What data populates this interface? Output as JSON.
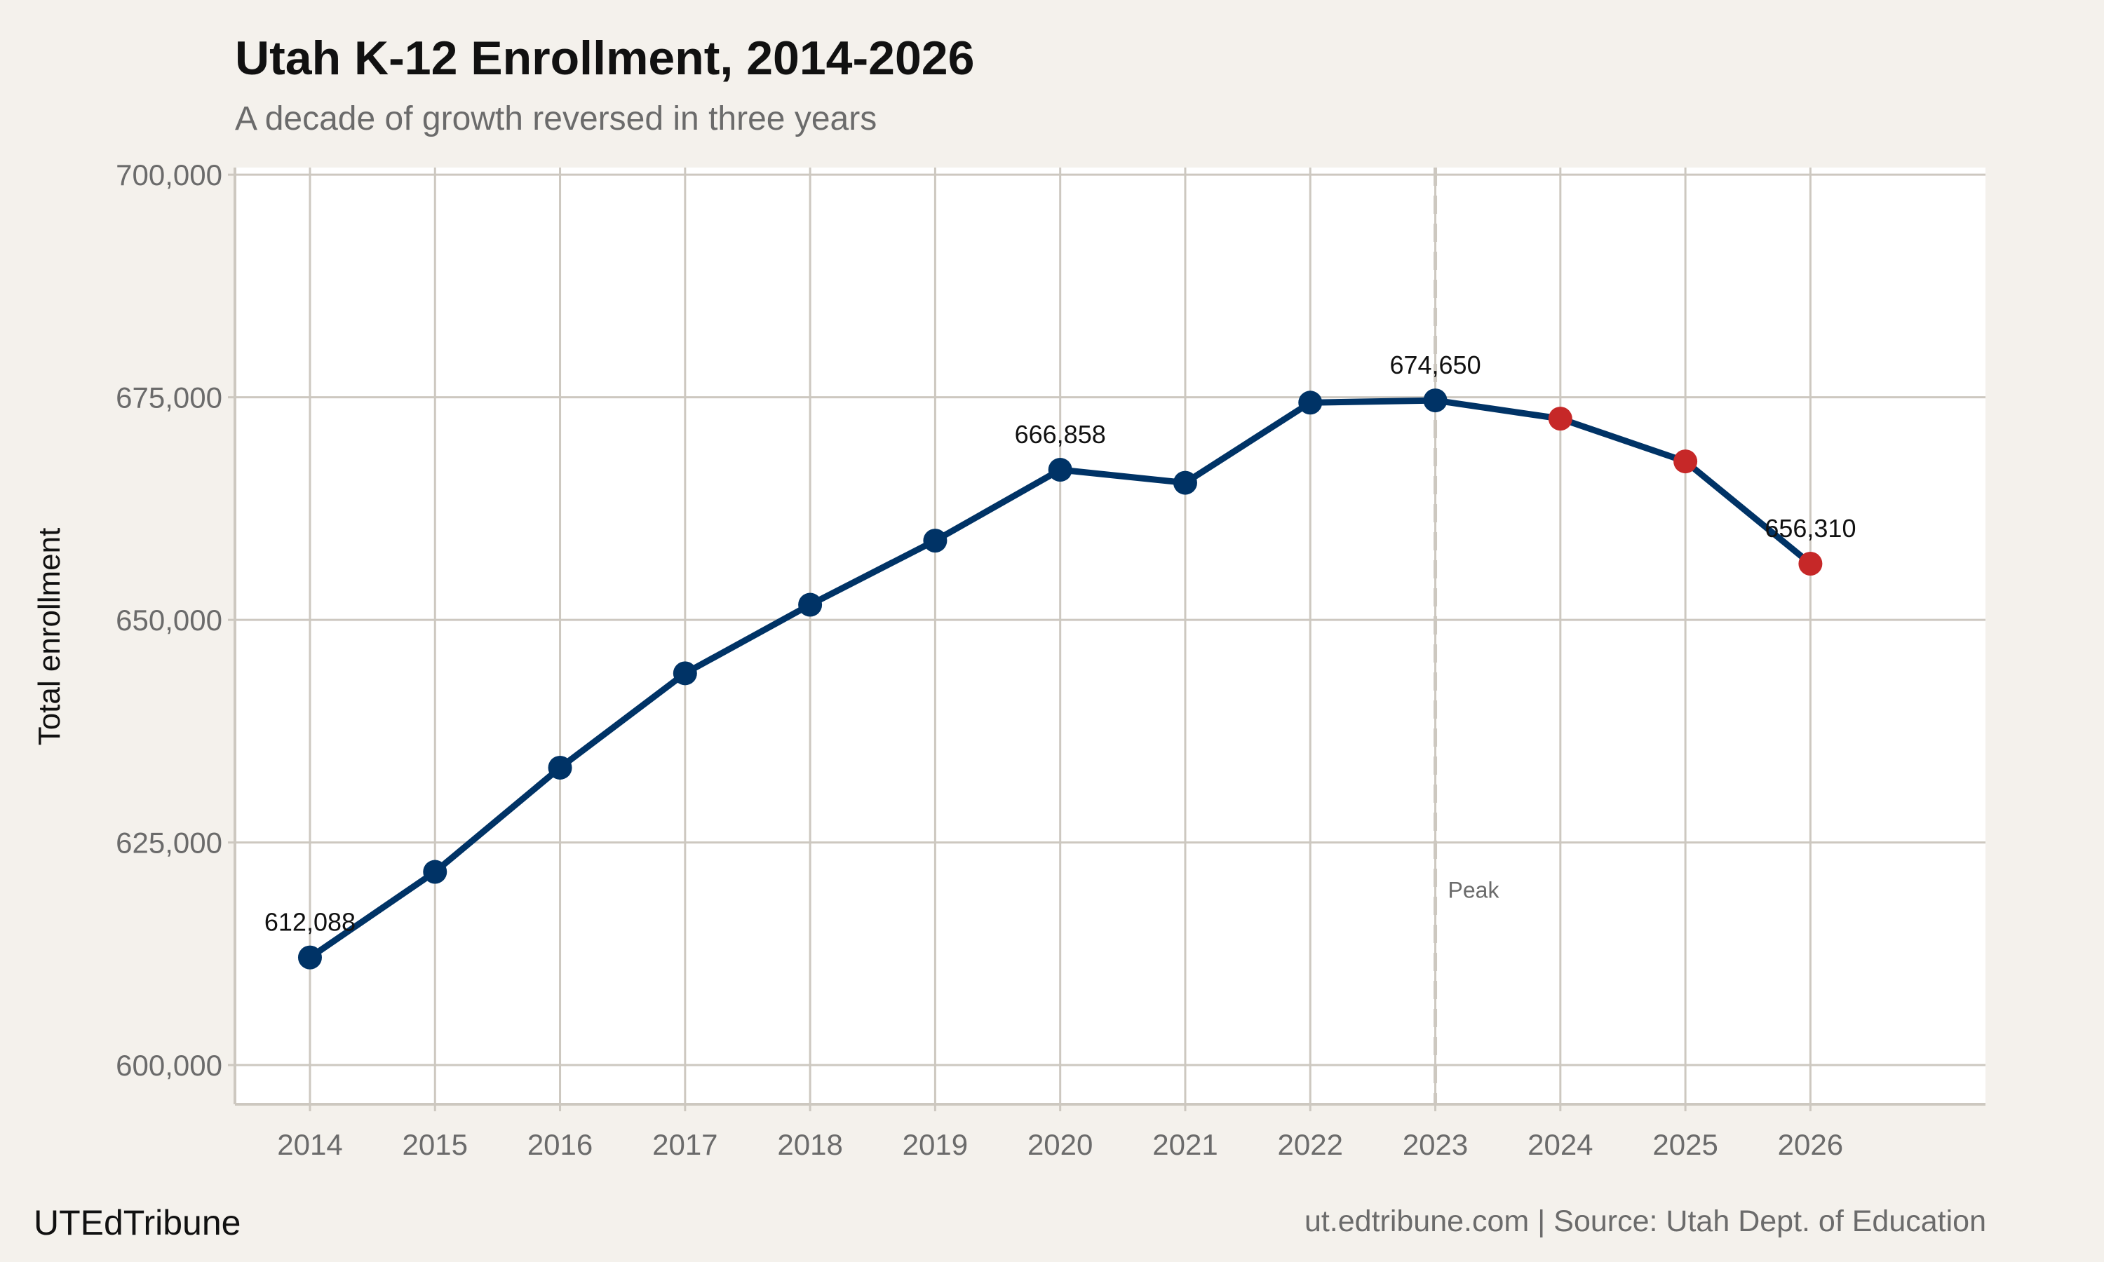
{
  "chart_data": {
    "type": "line",
    "title": "Utah K-12 Enrollment, 2014-2026",
    "subtitle": "A decade of growth reversed in three years",
    "xlabel": "",
    "ylabel": "Total enrollment",
    "x": [
      2014,
      2015,
      2016,
      2017,
      2018,
      2019,
      2020,
      2021,
      2022,
      2023,
      2024,
      2025,
      2026
    ],
    "values": [
      612088,
      621700,
      633400,
      644000,
      651700,
      658900,
      666858,
      665400,
      674400,
      674650,
      672600,
      667800,
      656310
    ],
    "point_colors": [
      "#003366",
      "#003366",
      "#003366",
      "#003366",
      "#003366",
      "#003366",
      "#003366",
      "#003366",
      "#003366",
      "#003366",
      "#c62828",
      "#c62828",
      "#c62828"
    ],
    "line_color": "#003366",
    "data_labels": [
      {
        "x": 2014,
        "text": "612,088"
      },
      {
        "x": 2020,
        "text": "666,858"
      },
      {
        "x": 2023,
        "text": "674,650"
      },
      {
        "x": 2026,
        "text": "656,310"
      }
    ],
    "annotation": {
      "x": 2023,
      "text": "Peak",
      "style": "dashed vertical line"
    },
    "yticks": [
      600000,
      625000,
      650000,
      675000,
      700000
    ],
    "ytick_labels": [
      "600,000",
      "625,000",
      "650,000",
      "675,000",
      "700,000"
    ],
    "xtick_labels": [
      "2014",
      "2015",
      "2016",
      "2017",
      "2018",
      "2019",
      "2020",
      "2021",
      "2022",
      "2023",
      "2024",
      "2025",
      "2026"
    ],
    "ylim": [
      595600,
      700800
    ],
    "xlim": [
      2013.4,
      2027.4
    ],
    "grid": true
  },
  "footer": {
    "brand": "UTEdTribune",
    "source": "ut.edtribune.com | Source: Utah Dept. of Education"
  },
  "colors": {
    "background": "#f4f1ec",
    "panel": "#ffffff",
    "grid": "#cdc8c0"
  }
}
